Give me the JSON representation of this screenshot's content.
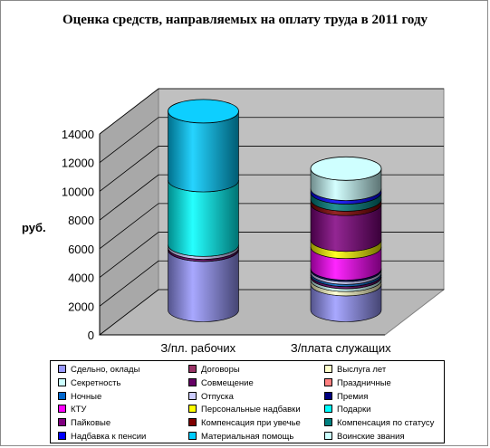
{
  "chart_data": {
    "type": "bar",
    "stacked": true,
    "three_d": true,
    "title": "Оценка средств, направляемых на оплату труда в 2011 году",
    "ylabel": "руб.",
    "xlabel": "",
    "ylim": [
      0,
      14000
    ],
    "yticks": [
      0,
      2000,
      4000,
      6000,
      8000,
      10000,
      12000,
      14000
    ],
    "grid": true,
    "legend_position": "bottom",
    "categories": [
      "З/пл. рабочих",
      "З/плата служащих"
    ],
    "series": [
      {
        "name": "Сдельно, оклады",
        "color": "#9999ff",
        "values": [
          4200,
          1800
        ]
      },
      {
        "name": "Договоры",
        "color": "#993366",
        "values": [
          0,
          0
        ]
      },
      {
        "name": "Выслуга лет",
        "color": "#ffffcc",
        "values": [
          0,
          300
        ]
      },
      {
        "name": "Секретность",
        "color": "#ccffff",
        "values": [
          0,
          200
        ]
      },
      {
        "name": "Совмещение",
        "color": "#660066",
        "values": [
          150,
          150
        ]
      },
      {
        "name": "Праздничные",
        "color": "#ff8080",
        "values": [
          0,
          0
        ]
      },
      {
        "name": "Ночные",
        "color": "#0066cc",
        "values": [
          0,
          150
        ]
      },
      {
        "name": "Отпуска",
        "color": "#ccccff",
        "values": [
          200,
          200
        ]
      },
      {
        "name": "Премия",
        "color": "#000080",
        "values": [
          0,
          100
        ]
      },
      {
        "name": "КТУ",
        "color": "#ff00ff",
        "values": [
          0,
          1500
        ]
      },
      {
        "name": "Персональные надбавки",
        "color": "#ffff00",
        "values": [
          0,
          500
        ]
      },
      {
        "name": "Подарки",
        "color": "#00ffff",
        "values": [
          4500,
          0
        ]
      },
      {
        "name": "Пайковые",
        "color": "#800080",
        "values": [
          0,
          2500
        ]
      },
      {
        "name": "Компенсация при увечье",
        "color": "#800000",
        "values": [
          0,
          300
        ]
      },
      {
        "name": "Компенсация по статусу",
        "color": "#008080",
        "values": [
          0,
          500
        ]
      },
      {
        "name": "Надбавка к пенсии",
        "color": "#0000ff",
        "values": [
          0,
          250
        ]
      },
      {
        "name": "Материальная помощь",
        "color": "#00ccff",
        "values": [
          4800,
          0
        ]
      },
      {
        "name": "Воинские звания",
        "color": "#ccffff",
        "values": [
          0,
          1400
        ]
      }
    ]
  }
}
